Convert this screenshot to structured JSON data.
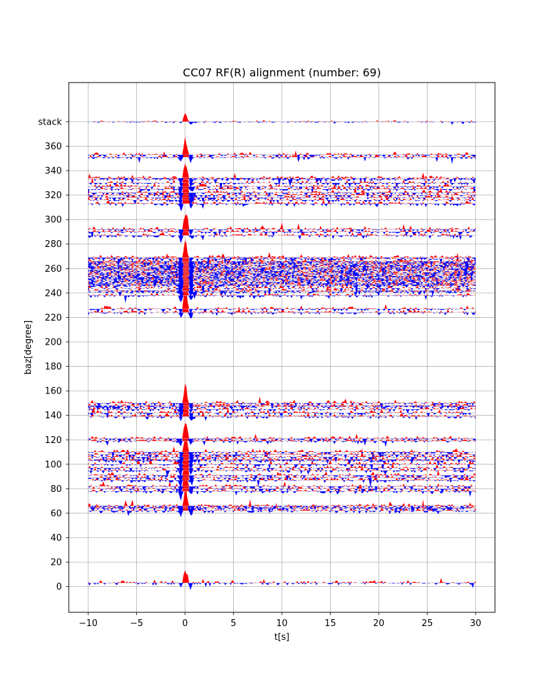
{
  "chart_data": {
    "type": "area",
    "title": "CC07 RF(R) alignment (number: 69)",
    "xlabel": "t[s]",
    "ylabel": "baz[degree]",
    "xlim": [
      -12,
      32
    ],
    "ylim": [
      -21,
      412
    ],
    "x_ticks": [
      -10,
      -5,
      0,
      5,
      10,
      15,
      20,
      25,
      30
    ],
    "x_tick_labels": [
      "−10",
      "−5",
      "0",
      "5",
      "10",
      "15",
      "20",
      "25",
      "30"
    ],
    "y_ticks": [
      0,
      20,
      40,
      60,
      80,
      100,
      120,
      140,
      160,
      180,
      200,
      220,
      240,
      260,
      280,
      300,
      320,
      340,
      360,
      380
    ],
    "y_tick_labels": [
      "0",
      "20",
      "40",
      "60",
      "80",
      "100",
      "120",
      "140",
      "160",
      "180",
      "200",
      "220",
      "240",
      "260",
      "280",
      "300",
      "320",
      "340",
      "360",
      "stack"
    ],
    "grid": true,
    "t_range": [
      -10,
      30
    ],
    "positive_color": "#ff0000",
    "negative_color": "#0000ff",
    "trace_baz": [
      3,
      62,
      64,
      65,
      66,
      78,
      80,
      82,
      87,
      89,
      91,
      95,
      97,
      100,
      103,
      104,
      106,
      108,
      110,
      119,
      121,
      139,
      142,
      145,
      147,
      148,
      150,
      224,
      227,
      238,
      241,
      242,
      244,
      246,
      247,
      248,
      249,
      250,
      251,
      252,
      253,
      254,
      255,
      256,
      257,
      258,
      259,
      260,
      261,
      262,
      263,
      264,
      265,
      266,
      268,
      269,
      287,
      290,
      292,
      313,
      316,
      318,
      320,
      322,
      325,
      327,
      330,
      333,
      334,
      351,
      353
    ],
    "stack_position": 380
  }
}
